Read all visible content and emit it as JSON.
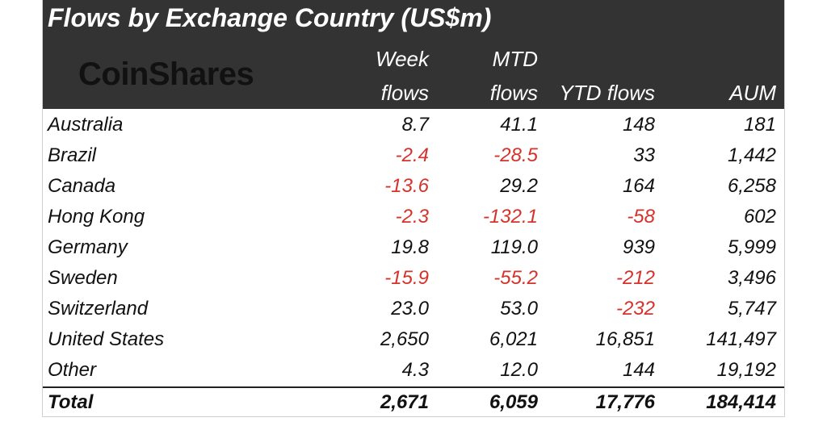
{
  "title": "Flows by Exchange Country (US$m)",
  "logo_text": "CoinShares",
  "headers": {
    "week_line1": "Week",
    "week_line2": "flows",
    "mtd_line1": "MTD",
    "mtd_line2": "flows",
    "ytd": "YTD flows",
    "aum": "AUM"
  },
  "colors": {
    "negative": "#d6322c",
    "header_bg": "#333333"
  },
  "rows": [
    {
      "country": "Australia",
      "week": "8.7",
      "mtd": "41.1",
      "ytd": "148",
      "aum": "181"
    },
    {
      "country": "Brazil",
      "week": "-2.4",
      "mtd": "-28.5",
      "ytd": "33",
      "aum": "1,442"
    },
    {
      "country": "Canada",
      "week": "-13.6",
      "mtd": "29.2",
      "ytd": "164",
      "aum": "6,258"
    },
    {
      "country": "Hong Kong",
      "week": "-2.3",
      "mtd": "-132.1",
      "ytd": "-58",
      "aum": "602"
    },
    {
      "country": "Germany",
      "week": "19.8",
      "mtd": "119.0",
      "ytd": "939",
      "aum": "5,999"
    },
    {
      "country": "Sweden",
      "week": "-15.9",
      "mtd": "-55.2",
      "ytd": "-212",
      "aum": "3,496"
    },
    {
      "country": "Switzerland",
      "week": "23.0",
      "mtd": "53.0",
      "ytd": "-232",
      "aum": "5,747"
    },
    {
      "country": "United States",
      "week": "2,650",
      "mtd": "6,021",
      "ytd": "16,851",
      "aum": "141,497"
    },
    {
      "country": "Other",
      "week": "4.3",
      "mtd": "12.0",
      "ytd": "144",
      "aum": "19,192"
    }
  ],
  "total": {
    "country": "Total",
    "week": "2,671",
    "mtd": "6,059",
    "ytd": "17,776",
    "aum": "184,414"
  }
}
